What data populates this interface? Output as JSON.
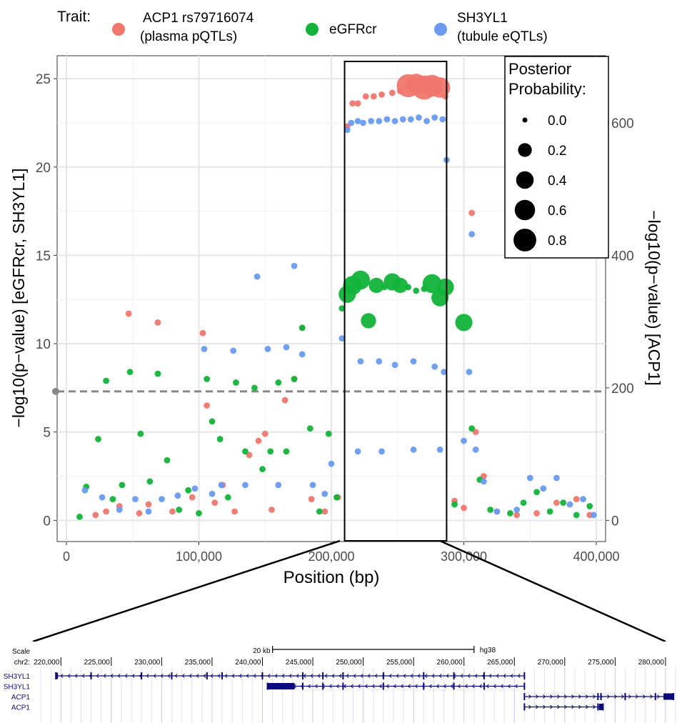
{
  "legend": {
    "title": "Trait:",
    "traits": [
      {
        "label_lines": [
          "ACP1 rs79716074",
          "(plasma pQTLs)"
        ],
        "color": "#F0776E"
      },
      {
        "label_lines": [
          "eGFRcr"
        ],
        "color": "#12B33A"
      },
      {
        "label_lines": [
          "SH3YL1",
          "(tubule eQTLs)"
        ],
        "color": "#6A9BF0"
      }
    ]
  },
  "pp_legend": {
    "title_lines": [
      "Posterior",
      "Probability:"
    ],
    "levels": [
      "0.0",
      "0.2",
      "0.4",
      "0.6",
      "0.8"
    ],
    "level_values": [
      0.0,
      0.2,
      0.4,
      0.6,
      0.8
    ]
  },
  "chart_data": {
    "type": "scatter",
    "xlabel": "Position (bp)",
    "ylabel_left": "−log10(p−value) [eGFRcr, SH3YL1]",
    "ylabel_right": "−log10(p−value) [ACP1]",
    "x_ticks": [
      0,
      100000,
      200000,
      300000,
      400000
    ],
    "x_tick_labels": [
      "0",
      "100,000",
      "200,000",
      "300,000",
      "400,000"
    ],
    "xlim": [
      -7000,
      407000
    ],
    "y_ticks": [
      0,
      5,
      10,
      15,
      20,
      25
    ],
    "y_tick_labels": [
      "0",
      "5",
      "10",
      "15",
      "20",
      "25"
    ],
    "ylim": [
      -1.2,
      26.3
    ],
    "y_right_ticks": [
      0,
      200,
      400,
      600
    ],
    "y_right_tick_labels": [
      "0",
      "200",
      "400",
      "600"
    ],
    "y_right_per_left": 26.67,
    "significance_line_y": 7.3,
    "highlight_region_x": [
      210000,
      287000
    ],
    "grid": true,
    "series": [
      {
        "name": "ACP1 rs79716074 (plasma pQTLs)",
        "color": "#F0776E",
        "axis": "right",
        "points": [
          [
            22000,
            0.3,
            0
          ],
          [
            30000,
            0.5,
            0
          ],
          [
            40000,
            0.8,
            0
          ],
          [
            47000,
            11.7,
            0
          ],
          [
            55000,
            0.4,
            0
          ],
          [
            62000,
            0.9,
            0
          ],
          [
            69000,
            11.2,
            0
          ],
          [
            80000,
            0.5,
            0
          ],
          [
            95000,
            1.3,
            0
          ],
          [
            103000,
            10.6,
            0
          ],
          [
            106000,
            6.5,
            0
          ],
          [
            112000,
            1.0,
            0
          ],
          [
            118000,
            2.0,
            0
          ],
          [
            127000,
            0.5,
            0
          ],
          [
            138000,
            3.7,
            0
          ],
          [
            145000,
            4.5,
            0
          ],
          [
            150000,
            4.9,
            0
          ],
          [
            155000,
            0.6,
            0
          ],
          [
            165000,
            6.8,
            0
          ],
          [
            172000,
            8.0,
            0
          ],
          [
            178000,
            10.9,
            0
          ],
          [
            185000,
            1.2,
            0
          ],
          [
            195000,
            0.5,
            0
          ],
          [
            205000,
            1.3,
            0
          ],
          [
            212000,
            22.3,
            0
          ],
          [
            216000,
            23.6,
            0
          ],
          [
            220000,
            23.6,
            0
          ],
          [
            226000,
            24.0,
            0
          ],
          [
            232000,
            24.0,
            0
          ],
          [
            238000,
            24.1,
            0
          ],
          [
            246000,
            24.2,
            0
          ],
          [
            252000,
            24.3,
            0
          ],
          [
            258000,
            24.6,
            0.7
          ],
          [
            264000,
            24.7,
            0.5
          ],
          [
            270000,
            24.5,
            0.8
          ],
          [
            276000,
            24.6,
            0.6
          ],
          [
            282000,
            24.5,
            0.5
          ],
          [
            286000,
            24.0,
            0
          ],
          [
            293000,
            1.1,
            0
          ],
          [
            300000,
            0.7,
            0
          ],
          [
            306000,
            17.4,
            0
          ],
          [
            309000,
            5.0,
            0
          ],
          [
            315000,
            2.5,
            0
          ],
          [
            325000,
            0.5,
            0
          ],
          [
            340000,
            0.3,
            0
          ],
          [
            355000,
            0.4,
            0
          ],
          [
            370000,
            1.0,
            0
          ],
          [
            385000,
            1.2,
            0
          ],
          [
            395000,
            0.3,
            0
          ]
        ]
      },
      {
        "name": "eGFRcr",
        "color": "#12B33A",
        "axis": "left",
        "points": [
          [
            10000,
            0.2,
            0
          ],
          [
            15000,
            1.9,
            0
          ],
          [
            24000,
            4.6,
            0
          ],
          [
            30000,
            7.9,
            0
          ],
          [
            35000,
            1.2,
            0
          ],
          [
            42000,
            2.0,
            0
          ],
          [
            48000,
            8.4,
            0
          ],
          [
            56000,
            4.9,
            0
          ],
          [
            63000,
            2.2,
            0
          ],
          [
            69000,
            8.3,
            0
          ],
          [
            76000,
            3.4,
            0
          ],
          [
            85000,
            0.6,
            0
          ],
          [
            92000,
            1.7,
            0
          ],
          [
            100000,
            0.4,
            0
          ],
          [
            106000,
            8.0,
            0
          ],
          [
            110000,
            5.6,
            0
          ],
          [
            116000,
            4.6,
            0
          ],
          [
            122000,
            1.3,
            0
          ],
          [
            128000,
            7.8,
            0
          ],
          [
            135000,
            3.9,
            0
          ],
          [
            142000,
            7.5,
            0
          ],
          [
            148000,
            2.9,
            0
          ],
          [
            154000,
            3.9,
            0
          ],
          [
            160000,
            7.8,
            0
          ],
          [
            166000,
            3.9,
            0
          ],
          [
            172000,
            8.0,
            0
          ],
          [
            178000,
            10.9,
            0
          ],
          [
            184000,
            5.2,
            0
          ],
          [
            191000,
            0.5,
            0
          ],
          [
            198000,
            4.9,
            0
          ],
          [
            204000,
            1.3,
            0
          ],
          [
            208000,
            12.0,
            0
          ],
          [
            212000,
            12.8,
            0.3
          ],
          [
            216000,
            13.3,
            0.4
          ],
          [
            222000,
            13.6,
            0.4
          ],
          [
            228000,
            11.3,
            0.2
          ],
          [
            234000,
            13.3,
            0.2
          ],
          [
            240000,
            13.2,
            0
          ],
          [
            246000,
            13.5,
            0.3
          ],
          [
            252000,
            13.3,
            0.2
          ],
          [
            258000,
            13.2,
            0
          ],
          [
            264000,
            13.0,
            0
          ],
          [
            270000,
            13.1,
            0
          ],
          [
            276000,
            13.4,
            0.4
          ],
          [
            282000,
            12.6,
            0.3
          ],
          [
            286000,
            13.2,
            0.3
          ],
          [
            293000,
            0.9,
            0
          ],
          [
            300000,
            11.2,
            0.3
          ],
          [
            306000,
            5.2,
            0
          ],
          [
            312000,
            2.3,
            0
          ],
          [
            320000,
            0.6,
            0
          ],
          [
            335000,
            0.4,
            0
          ],
          [
            345000,
            1.0,
            0
          ],
          [
            355000,
            1.6,
            0
          ],
          [
            365000,
            0.5,
            0
          ],
          [
            375000,
            1.0,
            0
          ],
          [
            385000,
            0.3,
            0
          ],
          [
            395000,
            0.8,
            0
          ]
        ]
      },
      {
        "name": "SH3YL1 (tubule eQTLs)",
        "color": "#6A9BF0",
        "axis": "left",
        "points": [
          [
            14000,
            1.7,
            0
          ],
          [
            27000,
            1.3,
            0
          ],
          [
            40000,
            0.6,
            0
          ],
          [
            52000,
            1.2,
            0
          ],
          [
            62000,
            0.5,
            0
          ],
          [
            72000,
            1.2,
            0
          ],
          [
            84000,
            1.4,
            0
          ],
          [
            97000,
            1.8,
            0
          ],
          [
            104000,
            9.7,
            0
          ],
          [
            110000,
            1.5,
            0
          ],
          [
            117000,
            2.0,
            0
          ],
          [
            126000,
            9.6,
            0
          ],
          [
            135000,
            2.0,
            0
          ],
          [
            144000,
            13.8,
            0
          ],
          [
            152000,
            9.7,
            0
          ],
          [
            160000,
            2.0,
            0
          ],
          [
            166000,
            9.8,
            0
          ],
          [
            172000,
            14.4,
            0
          ],
          [
            178000,
            9.4,
            0
          ],
          [
            186000,
            2.0,
            0
          ],
          [
            195000,
            1.5,
            0
          ],
          [
            200000,
            3.2,
            0
          ],
          [
            208000,
            10.3,
            0
          ],
          [
            212000,
            22.1,
            0
          ],
          [
            215000,
            22.5,
            0
          ],
          [
            220000,
            22.6,
            0
          ],
          [
            224000,
            22.5,
            0
          ],
          [
            230000,
            22.6,
            0
          ],
          [
            236000,
            22.6,
            0
          ],
          [
            242000,
            22.7,
            0
          ],
          [
            248000,
            22.6,
            0
          ],
          [
            254000,
            22.7,
            0
          ],
          [
            260000,
            22.7,
            0
          ],
          [
            266000,
            22.8,
            0
          ],
          [
            272000,
            22.6,
            0
          ],
          [
            278000,
            22.8,
            0
          ],
          [
            284000,
            22.7,
            0
          ],
          [
            287000,
            20.4,
            0
          ],
          [
            222000,
            9.0,
            0
          ],
          [
            236000,
            9.0,
            0
          ],
          [
            248000,
            8.8,
            0
          ],
          [
            262000,
            9.0,
            0
          ],
          [
            278000,
            8.7,
            0
          ],
          [
            285000,
            8.4,
            0
          ],
          [
            220000,
            3.9,
            0
          ],
          [
            238000,
            3.9,
            0
          ],
          [
            262000,
            4.0,
            0
          ],
          [
            282000,
            4.0,
            0
          ],
          [
            300000,
            4.5,
            0
          ],
          [
            304000,
            8.4,
            0
          ],
          [
            306000,
            16.2,
            0
          ],
          [
            309000,
            4.0,
            0
          ],
          [
            315000,
            2.2,
            0
          ],
          [
            325000,
            0.5,
            0
          ],
          [
            340000,
            0.6,
            0
          ],
          [
            350000,
            2.4,
            0
          ],
          [
            360000,
            1.8,
            0
          ],
          [
            370000,
            2.4,
            0
          ],
          [
            380000,
            0.9,
            0
          ],
          [
            390000,
            1.2,
            0
          ],
          [
            398000,
            0.3,
            0
          ]
        ]
      }
    ]
  },
  "track": {
    "scale_label": "Scale",
    "scale_value": "20 kb",
    "assembly": "hg38",
    "chrom_label": "chr2:",
    "range": [
      217500,
      281000
    ],
    "positions": [
      220000,
      225000,
      230000,
      235000,
      240000,
      245000,
      250000,
      255000,
      260000,
      265000,
      270000,
      275000,
      280000
    ],
    "position_labels": [
      "220,000",
      "225,000",
      "230,000",
      "235,000",
      "240,000",
      "245,000",
      "250,000",
      "255,000",
      "260,000",
      "265,000",
      "270,000",
      "275,000",
      "280,000"
    ],
    "scalebar_range": [
      241000,
      261000
    ],
    "genes": [
      {
        "label": "SH3YL1",
        "strand": "-",
        "start": 219500,
        "end": 266000,
        "thick_start": 219500,
        "thick_end": 219700,
        "exons": [
          219500,
          223000,
          228000,
          231000,
          234500,
          236000,
          240000,
          244000,
          246000,
          248000,
          252000,
          256000,
          259000,
          262000,
          266000
        ]
      },
      {
        "label": "SH3YL1",
        "strand": "-",
        "start": 240500,
        "end": 266000,
        "thick_start": 240500,
        "thick_end": 243200,
        "exons": [
          240500,
          244000,
          246000,
          248000,
          252000,
          256000,
          259000,
          262000,
          266000
        ]
      },
      {
        "label": "ACP1",
        "strand": "+",
        "start": 266000,
        "end": 280800,
        "thick_start": 279800,
        "thick_end": 280800,
        "exons": [
          266000,
          273300,
          273600,
          276000,
          279000,
          280800
        ]
      },
      {
        "label": "ACP1",
        "strand": "+",
        "start": 266000,
        "end": 273800,
        "thick_start": 273400,
        "thick_end": 273800,
        "exons": [
          266000,
          273300,
          273800
        ]
      }
    ]
  }
}
